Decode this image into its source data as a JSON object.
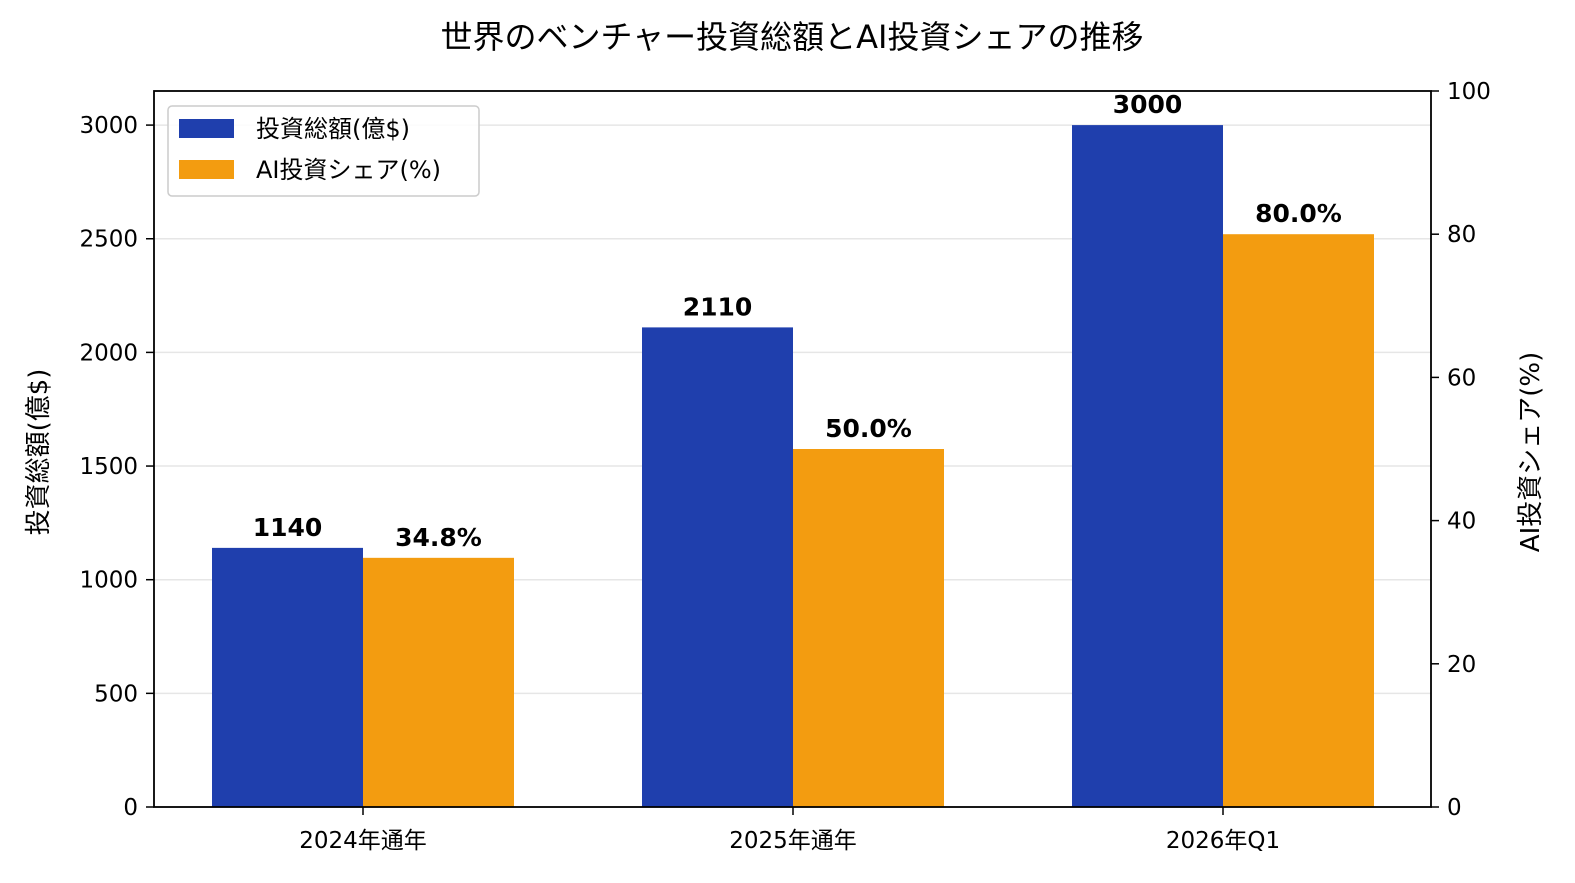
{
  "chart_data": {
    "type": "bar",
    "title": "世界のベンチャー投資総額とAI投資シェアの推移",
    "categories": [
      "2024年通年",
      "2025年通年",
      "2026年Q1"
    ],
    "series": [
      {
        "name": "投資総額(億$)",
        "axis": "left",
        "color": "#1f3fad",
        "values": [
          1140,
          2110,
          3000
        ],
        "labels": [
          "1140",
          "2110",
          "3000"
        ]
      },
      {
        "name": "AI投資シェア(%)",
        "axis": "right",
        "color": "#f39c10",
        "values": [
          34.8,
          50.0,
          80.0
        ],
        "labels": [
          "34.8%",
          "50.0%",
          "80.0%"
        ]
      }
    ],
    "ylabel": "投資総額(億$)",
    "y2label": "AI投資シェア(%)",
    "ylim": [
      0,
      3150
    ],
    "y2lim": [
      0,
      100
    ],
    "yticks": [
      0,
      500,
      1000,
      1500,
      2000,
      2500,
      3000
    ],
    "y2ticks": [
      0,
      20,
      40,
      60,
      80,
      100
    ],
    "grid": "horizontal",
    "legend_position": "top-left"
  }
}
